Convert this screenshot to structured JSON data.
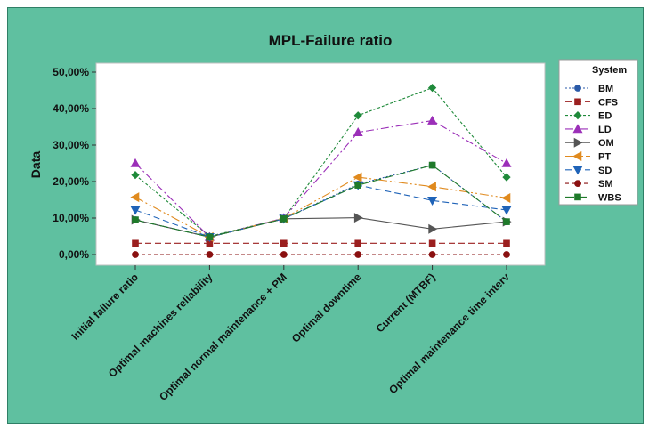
{
  "chart_data": {
    "type": "line",
    "title": "MPL-Failure ratio",
    "ylabel": "Data",
    "xlabel": "",
    "ylim": [
      0,
      0.5
    ],
    "y_ticks": [
      "0,00%",
      "10,00%",
      "20,00%",
      "30,00%",
      "40,00%",
      "50,00%"
    ],
    "categories": [
      "Initial failure ratio",
      "Optimal machines reliability",
      "Optimal normal maintenance + PM",
      "Optimal downtime",
      "Current (MTBF)",
      "Optimal maintenance time interv"
    ],
    "legend_title": "System",
    "legend_position": "right",
    "grid": false,
    "series": [
      {
        "name": "BM",
        "color": "#2a5aa8",
        "marker": "circle",
        "dash": "2,2",
        "values": [
          0.095,
          0.048,
          0.098,
          0.193,
          0.245,
          0.09
        ]
      },
      {
        "name": "CFS",
        "color": "#9b1f1f",
        "marker": "square",
        "dash": "7,4",
        "values": [
          0.031,
          0.031,
          0.031,
          0.031,
          0.031,
          0.031
        ]
      },
      {
        "name": "ED",
        "color": "#1f8a3a",
        "marker": "diamond",
        "dash": "3,2",
        "values": [
          0.218,
          0.05,
          0.099,
          0.381,
          0.457,
          0.212
        ]
      },
      {
        "name": "LD",
        "color": "#9b2fb8",
        "marker": "triangle-up",
        "dash": "9,3,2,3",
        "values": [
          0.25,
          0.048,
          0.1,
          0.335,
          0.367,
          0.25
        ]
      },
      {
        "name": "OM",
        "color": "#555555",
        "marker": "triangle-right",
        "dash": "none",
        "values": [
          0.095,
          0.048,
          0.098,
          0.101,
          0.07,
          0.09
        ]
      },
      {
        "name": "PT",
        "color": "#e08a1e",
        "marker": "triangle-left",
        "dash": "10,3,2,3,2,3",
        "values": [
          0.157,
          0.048,
          0.099,
          0.212,
          0.186,
          0.155
        ]
      },
      {
        "name": "SD",
        "color": "#1f63b8",
        "marker": "triangle-down",
        "dash": "7,4",
        "values": [
          0.122,
          0.048,
          0.098,
          0.19,
          0.148,
          0.122
        ]
      },
      {
        "name": "SM",
        "color": "#8a1010",
        "marker": "circle",
        "dash": "4,3",
        "values": [
          0.0,
          0.0,
          0.0,
          0.0,
          0.0,
          0.0
        ]
      },
      {
        "name": "WBS",
        "color": "#1f7a2a",
        "marker": "square",
        "dash": "10,4",
        "values": [
          0.095,
          0.048,
          0.098,
          0.19,
          0.245,
          0.09
        ]
      }
    ]
  }
}
